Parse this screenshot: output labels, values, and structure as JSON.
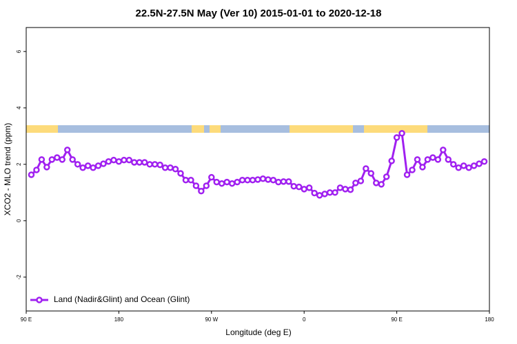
{
  "chart_data": {
    "type": "line",
    "title": "22.5N-27.5N May (Ver 10)   2015-01-01 to 2020-12-18",
    "x_label": "Longitude (deg E)",
    "y_label": "XCO2 - MLO trend (ppm)",
    "x": [
      95,
      100,
      105,
      110,
      115,
      120,
      125,
      130,
      135,
      140,
      145,
      150,
      155,
      160,
      165,
      170,
      175,
      180,
      185,
      190,
      195,
      200,
      205,
      210,
      215,
      220,
      225,
      230,
      235,
      240,
      245,
      250,
      255,
      260,
      265,
      270,
      275,
      280,
      285,
      290,
      295,
      300,
      305,
      310,
      315,
      320,
      325,
      330,
      335,
      340,
      345,
      350,
      355,
      360,
      365,
      370,
      375,
      380,
      385,
      390,
      395,
      400,
      405,
      410,
      415,
      420,
      425,
      430,
      435,
      440,
      445,
      450,
      455,
      460,
      465,
      470,
      475,
      480,
      485,
      490,
      495,
      500,
      505,
      510,
      515,
      520,
      525,
      530,
      535
    ],
    "series": [
      {
        "name": "Land (Nadir&Glint) and Ocean (Glint)",
        "color": "#a020f0",
        "values": [
          1.63,
          1.8,
          2.17,
          1.9,
          2.17,
          2.24,
          2.17,
          2.51,
          2.17,
          2.0,
          1.88,
          1.95,
          1.88,
          1.95,
          2.02,
          2.1,
          2.15,
          2.1,
          2.15,
          2.15,
          2.07,
          2.07,
          2.07,
          2.0,
          2.0,
          1.98,
          1.88,
          1.88,
          1.83,
          1.68,
          1.44,
          1.44,
          1.24,
          1.05,
          1.24,
          1.54,
          1.37,
          1.32,
          1.37,
          1.32,
          1.37,
          1.44,
          1.44,
          1.44,
          1.46,
          1.49,
          1.46,
          1.44,
          1.37,
          1.39,
          1.39,
          1.22,
          1.2,
          1.12,
          1.17,
          0.98,
          0.9,
          0.95,
          1.0,
          1.0,
          1.17,
          1.12,
          1.1,
          1.34,
          1.41,
          1.85,
          1.68,
          1.34,
          1.29,
          1.56,
          2.12,
          2.95,
          3.1,
          1.63,
          1.8,
          2.17,
          1.9,
          2.17,
          2.24,
          2.17,
          2.51,
          2.17,
          2.0,
          1.88,
          1.95,
          1.88,
          1.95,
          2.02,
          2.1
        ]
      }
    ],
    "xlim": [
      90,
      540
    ],
    "xticks": [
      {
        "value": 90,
        "label": "90 E"
      },
      180,
      {
        "value": 270,
        "label": "90 W"
      },
      {
        "value": 360,
        "label": "0"
      },
      {
        "value": 450,
        "label": "90 E"
      },
      {
        "value": 540,
        "label": "180"
      }
    ],
    "ylim": [
      -3.2,
      6.85
    ],
    "yticks": [
      -2,
      0,
      2,
      4,
      6
    ],
    "legend": "bottom-left"
  }
}
